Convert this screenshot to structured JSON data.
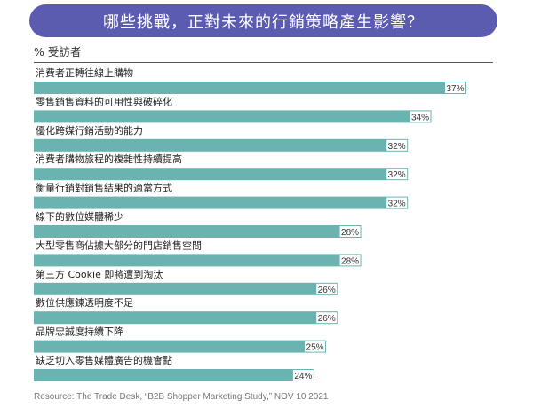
{
  "header": {
    "title": "哪些挑戰，正對未來的行銷策略產生影響？",
    "unit_label": "% 受訪者"
  },
  "colors": {
    "title_bg": "#5b5bb0",
    "bar": "#6bb3b0",
    "label_box": "#ffffff"
  },
  "chart_data": {
    "type": "bar",
    "orientation": "horizontal",
    "title": "哪些挑戰，正對未來的行銷策略產生影響？",
    "ylabel": "% 受訪者",
    "categories": [
      "消費者正轉往線上購物",
      "零售銷售資料的可用性與破碎化",
      "優化跨媒行銷活動的能力",
      "消費者購物旅程的複雜性持續提高",
      "衡量行銷對銷售結果的適當方式",
      "線下的數位媒體稀少",
      "大型零售商佔據大部分的門店銷售空間",
      "第三方 Cookie 即將遭到淘汰",
      "數位供應鍊透明度不足",
      "品牌忠誠度持續下降",
      "缺乏切入零售媒體廣告的機會點"
    ],
    "values": [
      37,
      34,
      32,
      32,
      32,
      28,
      28,
      26,
      26,
      25,
      24
    ],
    "value_labels": [
      "37%",
      "34%",
      "32%",
      "32%",
      "32%",
      "28%",
      "28%",
      "26%",
      "26%",
      "25%",
      "24%"
    ],
    "xlim": [
      0,
      37
    ],
    "grid": false,
    "legend": "none"
  },
  "footer": {
    "source": "Resource: The Trade Desk, “B2B Shopper Marketing Study,” NOV 10 2021"
  }
}
